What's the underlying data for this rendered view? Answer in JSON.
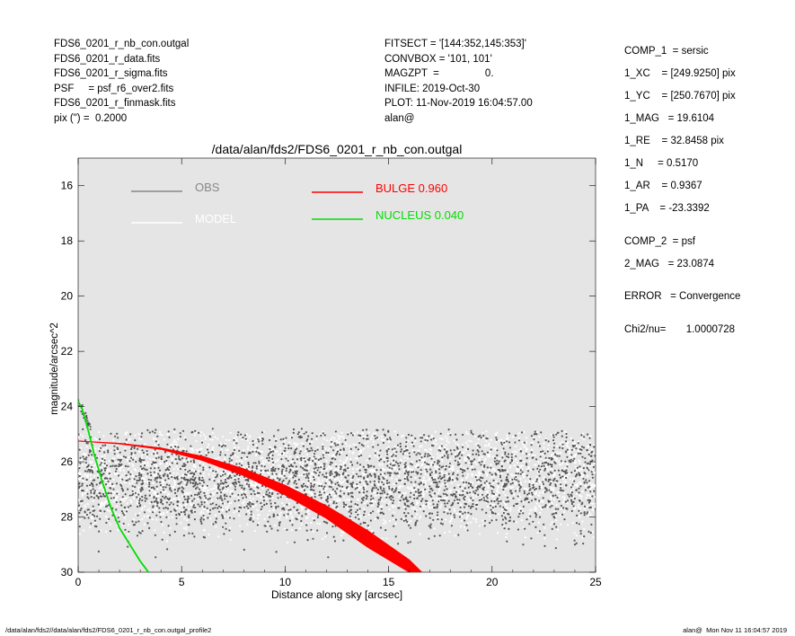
{
  "header_left": [
    "FDS6_0201_r_nb_con.outgal",
    "FDS6_0201_r_data.fits",
    "FDS6_0201_r_sigma.fits",
    "PSF     = psf_r6_over2.fits",
    "FDS6_0201_r_finmask.fits",
    "pix (\") =  0.2000"
  ],
  "header_mid": [
    "FITSECT = '[144:352,145:353]'",
    "CONVBOX = '101, 101'",
    "MAGZPT  =                0.",
    "INFILE: 2019-Oct-30",
    "PLOT: 11-Nov-2019 16:04:57.00",
    "alan@"
  ],
  "side_panel": {
    "comp1_title": "COMP_1  = sersic",
    "comp1_xc": "1_XC    = [249.9250] pix",
    "comp1_yc": "1_YC    = [250.7670] pix",
    "comp1_mag": "1_MAG   = 19.6104",
    "comp1_re": "1_RE    = 32.8458 pix",
    "comp1_n": "1_N     = 0.5170",
    "comp1_ar": "1_AR    = 0.9367",
    "comp1_pa": "1_PA    = -23.3392",
    "comp2_title": "COMP_2  = psf",
    "comp2_mag": "2_MAG   = 23.0874",
    "error": "ERROR   = Convergence",
    "chi2": "Chi2/nu=       1.0000728"
  },
  "footer": {
    "left": "/data/alan/fds2//data/alan/fds2/FDS6_0201_r_nb_con.outgal_profile2",
    "right": "alan@  Mon Nov 11 16:04:57 2019"
  },
  "colors": {
    "plot_bg": "#e5e5e5",
    "obs": "#555555",
    "model": "#ffffff",
    "bulge": "#ff0000",
    "nucleus": "#00dd00"
  },
  "chart_data": {
    "type": "scatter",
    "title": "/data/alan/fds2/FDS6_0201_r_nb_con.outgal",
    "xlabel": "Distance along sky [arcsec]",
    "ylabel": "magnitude/arcsec^2",
    "xlim": [
      0,
      25
    ],
    "ylim": [
      30,
      15
    ],
    "x_ticks": [
      0,
      5,
      10,
      15,
      20,
      25
    ],
    "y_ticks": [
      16,
      18,
      20,
      22,
      24,
      26,
      28,
      30
    ],
    "grid": false,
    "y_inverted": true,
    "legend": [
      {
        "label": "OBS",
        "color": "#888888"
      },
      {
        "label": "MODEL",
        "color": "#ffffff"
      },
      {
        "label": "BULGE  0.960",
        "color": "#ff0000"
      },
      {
        "label": "NUCLEUS  0.040",
        "color": "#00dd00"
      }
    ],
    "series": [
      {
        "name": "OBS",
        "kind": "scatter-band",
        "x_range": [
          0.0,
          25.0
        ],
        "center_mag": 26.75,
        "spread_mag": 1.7,
        "top_mag": 24.8,
        "n_points": 2600
      },
      {
        "name": "MODEL",
        "kind": "scatter-band",
        "x_range": [
          0.0,
          25.0
        ],
        "center_mag": 26.6,
        "spread_mag": 1.6,
        "top_mag": 24.9,
        "n_points": 3200
      },
      {
        "name": "BULGE  0.960",
        "kind": "band",
        "x": [
          0.0,
          2.0,
          4.0,
          6.0,
          8.0,
          10.0,
          12.0,
          14.0,
          16.0,
          16.6
        ],
        "y_low": [
          25.25,
          25.33,
          25.5,
          25.8,
          26.25,
          26.85,
          27.6,
          28.5,
          29.55,
          30.0
        ],
        "y_high": [
          25.25,
          25.35,
          25.55,
          25.95,
          26.5,
          27.2,
          28.05,
          29.1,
          30.0,
          30.0
        ]
      },
      {
        "name": "NUCLEUS  0.040",
        "kind": "line",
        "x": [
          0.0,
          0.2,
          0.5,
          0.8,
          1.2,
          1.6,
          2.0,
          2.5,
          3.0,
          3.4
        ],
        "y": [
          23.8,
          24.1,
          24.9,
          25.8,
          26.8,
          27.7,
          28.4,
          29.0,
          29.6,
          30.0
        ]
      }
    ]
  }
}
